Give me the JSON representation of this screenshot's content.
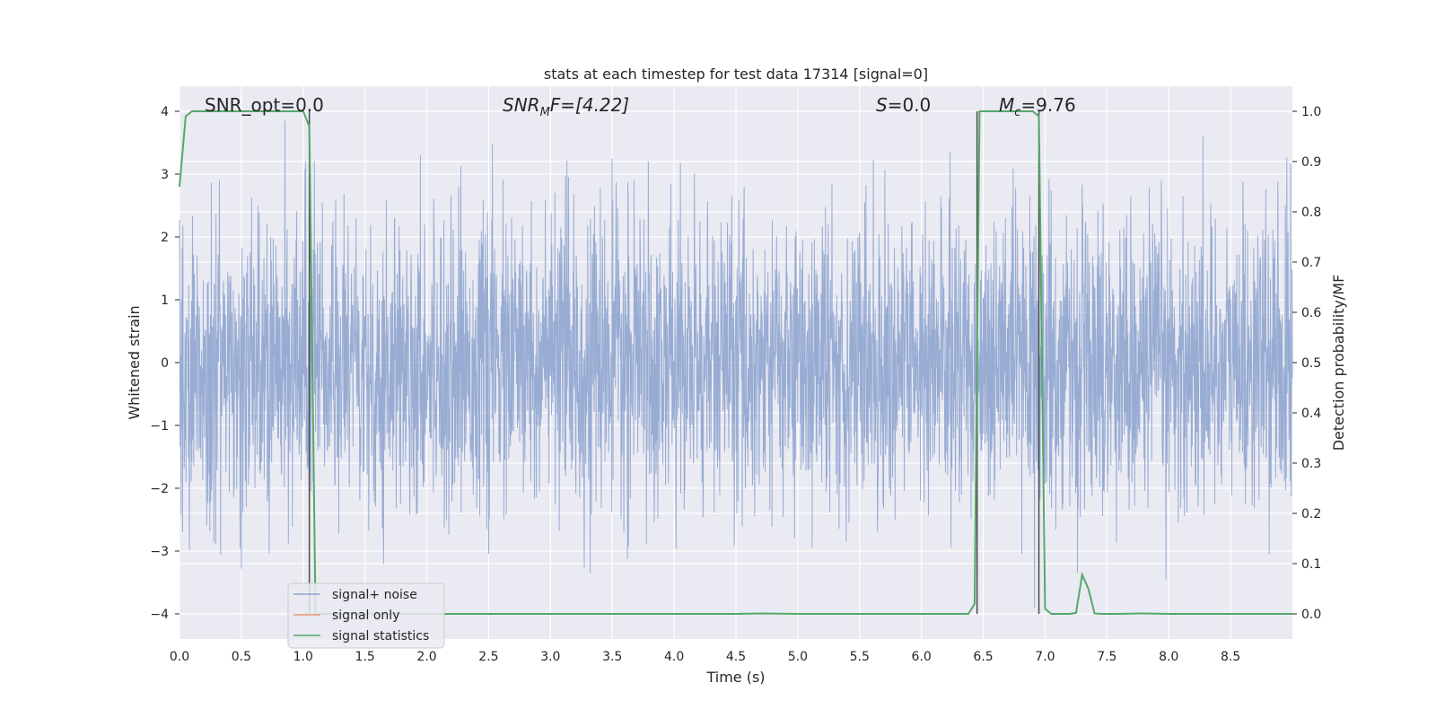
{
  "chart_data": {
    "type": "line",
    "title": "stats at each timestep for test data 17314 [signal=0]",
    "xlabel": "Time (s)",
    "ylabel_left": "Whitened strain",
    "ylabel_right": "Detection probability/MF",
    "xlim": [
      0.0,
      9.0
    ],
    "ylim_left": [
      -4.4,
      4.4
    ],
    "ylim_right": [
      -0.05,
      1.05
    ],
    "x_ticks": [
      0.0,
      0.5,
      1.0,
      1.5,
      2.0,
      2.5,
      3.0,
      3.5,
      4.0,
      4.5,
      5.0,
      5.5,
      6.0,
      6.5,
      7.0,
      7.5,
      8.0,
      8.5
    ],
    "x_tick_labels": [
      "0.0",
      "0.5",
      "1.0",
      "1.5",
      "2.0",
      "2.5",
      "3.0",
      "3.5",
      "4.0",
      "4.5",
      "5.0",
      "5.5",
      "6.0",
      "6.5",
      "7.0",
      "7.5",
      "8.0",
      "8.5"
    ],
    "y_left_ticks": [
      4,
      3,
      2,
      1,
      0,
      -1,
      -2,
      -3,
      -4
    ],
    "y_left_tick_labels": [
      "4",
      "3",
      "2",
      "1",
      "0",
      "−1",
      "−2",
      "−3",
      "−4"
    ],
    "y_right_ticks": [
      1.0,
      0.9,
      0.8,
      0.7,
      0.6,
      0.5,
      0.4,
      0.3,
      0.2,
      0.1,
      0.0
    ],
    "y_right_tick_labels": [
      "1.0",
      "0.9",
      "0.8",
      "0.7",
      "0.6",
      "0.5",
      "0.4",
      "0.3",
      "0.2",
      "0.1",
      "0.0"
    ],
    "grid": true,
    "legend_position": "lower-left",
    "annotations": {
      "snr_opt": "SNR_opt=0.0",
      "snr_mf_main": "SNR",
      "snr_mf_sub": "M",
      "snr_mf_rest": "F=[4.22]",
      "s_main": "S",
      "s_rest": "=0.0",
      "mc_main": "M",
      "mc_sub": "c",
      "mc_rest": "=9.76"
    },
    "vertical_lines_x": [
      1.05,
      6.45,
      6.95
    ],
    "series": [
      {
        "name": "signal+ noise",
        "axis": "left",
        "color": "#8fa5cf",
        "description_of_data": "whitened noise, roughly within -3.5..3.8"
      },
      {
        "name": "signal only",
        "axis": "left",
        "color": "#e6977a",
        "values": []
      },
      {
        "name": "signal statistics",
        "axis": "right",
        "color": "#55a868",
        "x": [
          0.0,
          0.05,
          0.1,
          0.15,
          0.2,
          0.3,
          0.4,
          0.5,
          0.6,
          0.7,
          0.8,
          0.9,
          1.0,
          1.05,
          1.1,
          1.15,
          1.2,
          1.5,
          2.0,
          2.5,
          3.0,
          3.5,
          4.0,
          4.5,
          4.7,
          5.0,
          5.5,
          6.0,
          6.38,
          6.43,
          6.47,
          6.5,
          6.6,
          6.7,
          6.8,
          6.9,
          6.95,
          7.0,
          7.05,
          7.1,
          7.2,
          7.25,
          7.3,
          7.35,
          7.4,
          7.45,
          7.6,
          7.8,
          8.0,
          8.5,
          9.0
        ],
        "values": [
          0.85,
          0.99,
          1.0,
          1.0,
          1.0,
          1.0,
          1.0,
          1.0,
          1.0,
          1.0,
          1.0,
          1.0,
          1.0,
          0.97,
          0.0,
          0.0,
          0.0,
          0.0,
          0.0,
          0.0,
          0.0,
          0.0,
          0.0,
          0.0,
          0.001,
          0.0,
          0.0,
          0.0,
          0.0,
          0.02,
          1.0,
          1.0,
          1.0,
          1.0,
          1.0,
          1.0,
          0.99,
          0.01,
          0.0,
          0.0,
          0.0,
          0.002,
          0.078,
          0.05,
          0.001,
          0.0,
          0.0,
          0.001,
          0.0,
          0.0,
          0.0
        ]
      }
    ]
  }
}
